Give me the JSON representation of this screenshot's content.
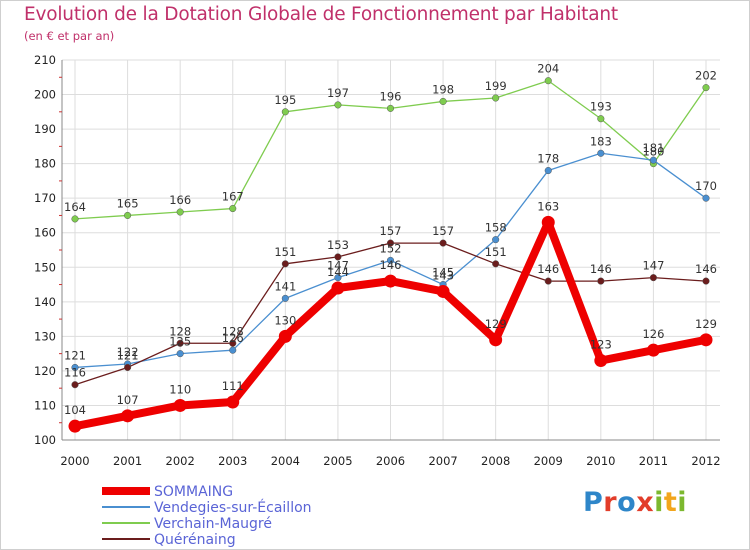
{
  "title": "Evolution de la Dotation Globale de Fonctionnement par Habitant",
  "subtitle": "(en € et par an)",
  "logo": {
    "letters": [
      "P",
      "r",
      "o",
      "x",
      "i",
      "t",
      "i"
    ],
    "colors": [
      "#2e86c9",
      "#e23d2a",
      "#2e86c9",
      "#e23d2a",
      "#7cb82f",
      "#f2a51c",
      "#7cb82f"
    ]
  },
  "chart_data": {
    "type": "line",
    "title": "Evolution de la Dotation Globale de Fonctionnement par Habitant",
    "subtitle": "(en € et par an)",
    "xlabel": "",
    "ylabel": "",
    "ylim": [
      100,
      210
    ],
    "yticks": [
      100,
      110,
      120,
      130,
      140,
      150,
      160,
      170,
      180,
      190,
      200,
      210
    ],
    "grid": true,
    "legend_position": "bottom-left",
    "categories": [
      "2000",
      "2001",
      "2002",
      "2003",
      "2004",
      "2005",
      "2006",
      "2007",
      "2008",
      "2009",
      "2010",
      "2011",
      "2012"
    ],
    "series": [
      {
        "name": "Verchain-Maugré",
        "color": "#7fcc4f",
        "values": [
          164,
          165,
          166,
          167,
          195,
          197,
          196,
          198,
          199,
          204,
          193,
          180,
          202
        ],
        "labels": [
          "164",
          "165",
          "166",
          "167",
          "195",
          "197",
          "196",
          "198",
          "199",
          "204",
          "193",
          "180",
          "202"
        ]
      },
      {
        "name": "Vendegies-sur-Écaillon",
        "color": "#4a8fd0",
        "values": [
          121,
          122,
          125,
          126,
          141,
          147,
          152,
          145,
          158,
          178,
          183,
          181,
          170
        ],
        "labels": [
          "121",
          "122",
          "125",
          "126",
          "141",
          "147",
          "152",
          "145",
          "158",
          "178",
          "183",
          "181",
          "170"
        ]
      },
      {
        "name": "Quérénaing",
        "color": "#6b1d1d",
        "values": [
          116,
          121,
          128,
          128,
          151,
          153,
          157,
          157,
          151,
          146,
          146,
          147,
          146
        ],
        "labels": [
          "116",
          "121",
          "128",
          "128",
          "151",
          "153",
          "157",
          "157",
          "151",
          "146",
          "146",
          "147",
          "146"
        ]
      },
      {
        "name": "SOMMAING",
        "color": "#ee0000",
        "values": [
          104,
          107,
          110,
          111,
          130,
          144,
          146,
          143,
          129,
          163,
          123,
          126,
          129
        ],
        "labels": [
          "104",
          "107",
          "110",
          "111",
          "130",
          "144",
          "146",
          "143",
          "129",
          "163",
          "123",
          "126",
          "129"
        ]
      }
    ],
    "legend_order": [
      "SOMMAING",
      "Vendegies-sur-Écaillon",
      "Verchain-Maugré",
      "Quérénaing"
    ]
  }
}
